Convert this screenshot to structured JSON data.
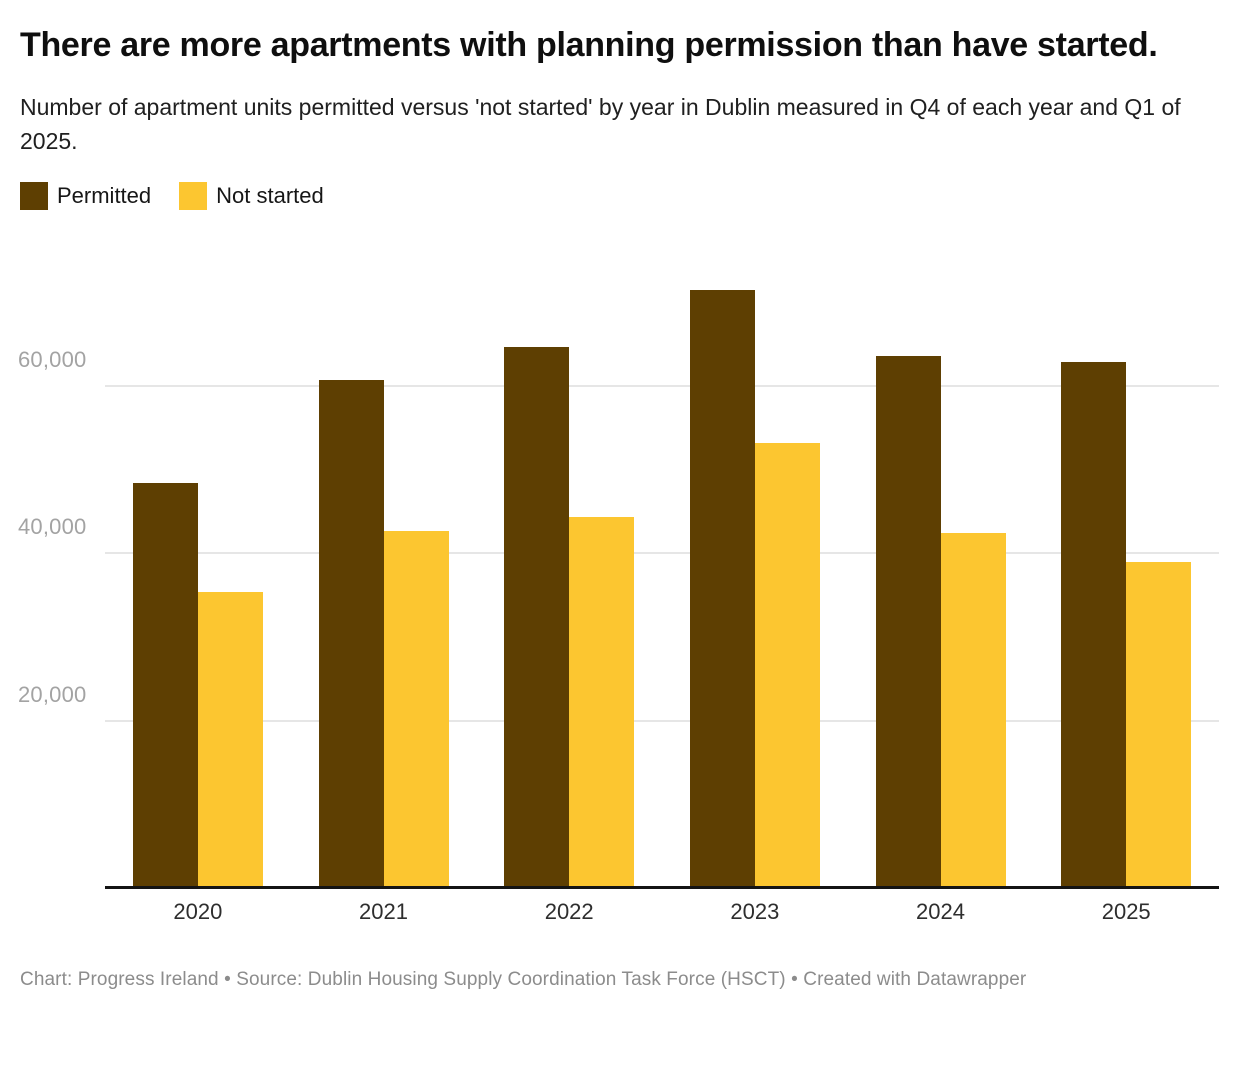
{
  "header": {
    "title": "There are more apartments with planning permission than have started.",
    "subtitle": "Number of apartment units permitted versus 'not started' by year in Dublin measured in Q4 of each year and Q1 of 2025."
  },
  "chart_data": {
    "type": "bar",
    "title": "There are more apartments with planning permission than have started.",
    "categories": [
      "2020",
      "2021",
      "2022",
      "2023",
      "2024",
      "2025"
    ],
    "series": [
      {
        "name": "Permitted",
        "color": "#5e3f02",
        "values": [
          48400,
          60700,
          64600,
          71400,
          63600,
          62800
        ]
      },
      {
        "name": "Not started",
        "color": "#fcc630",
        "values": [
          35400,
          42600,
          44300,
          53200,
          42400,
          38900
        ]
      }
    ],
    "xlabel": "",
    "ylabel": "",
    "ylim": [
      0,
      75000
    ],
    "yticks": [
      20000,
      40000,
      60000
    ],
    "ytick_labels": [
      "20,000",
      "40,000",
      "60,000"
    ],
    "grid": "horizontal-only",
    "legend_position": "top-left",
    "bar_colors": {
      "permitted": "#5e3f02",
      "not_started": "#fcc630"
    },
    "axis_color": "#141414",
    "gridline_color": "#e6e6e6"
  },
  "footer": {
    "text": "Chart: Progress Ireland • Source: Dublin Housing Supply Coordination Task Force (HSCT) • Created with Datawrapper"
  }
}
